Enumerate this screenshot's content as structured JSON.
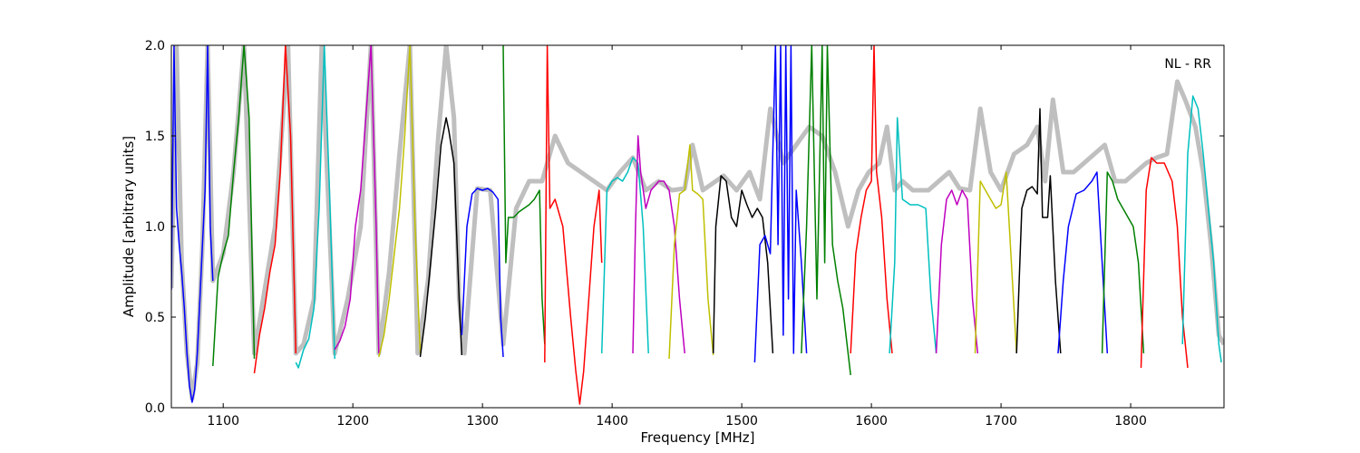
{
  "chart_data": {
    "type": "line",
    "title": "",
    "xlabel": "Frequency [MHz]",
    "ylabel": "Amplitude [arbitrary units]",
    "annotation": "NL - RR",
    "xlim": [
      1060,
      1872
    ],
    "ylim": [
      0.0,
      2.0
    ],
    "x_ticks": [
      1100,
      1200,
      1300,
      1400,
      1500,
      1600,
      1700,
      1800
    ],
    "x_tick_labels": [
      "1100",
      "1200",
      "1300",
      "1400",
      "1500",
      "1600",
      "1700",
      "1800"
    ],
    "y_ticks": [
      0.0,
      0.5,
      1.0,
      1.5,
      2.0
    ],
    "y_tick_labels": [
      "0.0",
      "0.5",
      "1.0",
      "1.5",
      "2.0"
    ],
    "grid": false,
    "background_series": {
      "color": "#bfbfbf",
      "x": [
        1060,
        1064,
        1068,
        1072,
        1076,
        1080,
        1084,
        1088,
        1092,
        1100,
        1108,
        1116,
        1124,
        1132,
        1140,
        1150,
        1156,
        1162,
        1170,
        1176,
        1186,
        1196,
        1206,
        1214,
        1220,
        1228,
        1236,
        1244,
        1250,
        1258,
        1266,
        1272,
        1278,
        1282,
        1286,
        1296,
        1306,
        1316,
        1326,
        1336,
        1346,
        1356,
        1366,
        1376,
        1386,
        1396,
        1406,
        1416,
        1426,
        1436,
        1446,
        1456,
        1462,
        1470,
        1480,
        1486,
        1496,
        1506,
        1514,
        1522,
        1532,
        1542,
        1552,
        1562,
        1572,
        1582,
        1590,
        1598,
        1606,
        1612,
        1618,
        1624,
        1632,
        1644,
        1652,
        1660,
        1668,
        1676,
        1684,
        1692,
        1700,
        1710,
        1720,
        1728,
        1734,
        1740,
        1748,
        1756,
        1764,
        1772,
        1780,
        1788,
        1796,
        1804,
        1812,
        1820,
        1828,
        1836,
        1842,
        1850,
        1856,
        1862,
        1868,
        1872
      ],
      "y": [
        0.66,
        2.0,
        0.8,
        0.3,
        0.05,
        0.25,
        0.9,
        2.0,
        0.7,
        0.85,
        1.3,
        2.0,
        0.3,
        0.65,
        1.0,
        2.0,
        0.3,
        0.35,
        0.6,
        2.0,
        0.3,
        0.6,
        1.0,
        2.0,
        0.3,
        0.75,
        1.4,
        2.0,
        0.3,
        0.7,
        1.5,
        2.0,
        1.6,
        0.6,
        0.3,
        1.21,
        1.2,
        0.35,
        1.1,
        1.25,
        1.25,
        1.5,
        1.35,
        1.3,
        1.25,
        1.2,
        1.3,
        1.38,
        1.2,
        1.25,
        1.2,
        1.21,
        1.45,
        1.2,
        1.25,
        1.28,
        1.2,
        1.3,
        1.15,
        1.65,
        1.35,
        1.45,
        1.55,
        1.5,
        1.3,
        1.0,
        1.2,
        1.3,
        1.35,
        1.55,
        1.2,
        1.25,
        1.2,
        1.2,
        1.25,
        1.3,
        1.21,
        1.2,
        1.65,
        1.3,
        1.2,
        1.4,
        1.45,
        1.55,
        1.25,
        1.7,
        1.3,
        1.3,
        1.35,
        1.4,
        1.45,
        1.25,
        1.25,
        1.3,
        1.35,
        1.38,
        1.4,
        1.8,
        1.7,
        1.55,
        1.3,
        0.9,
        0.4,
        0.35
      ]
    },
    "series": [
      {
        "color": "#0000ff",
        "x": [
          1060,
          1062,
          1064,
          1066,
          1068,
          1070,
          1072,
          1074,
          1076,
          1078,
          1080,
          1082,
          1084,
          1086,
          1088,
          1090,
          1092
        ],
        "y": [
          0.65,
          2.0,
          1.1,
          0.9,
          0.75,
          0.55,
          0.3,
          0.12,
          0.03,
          0.1,
          0.3,
          0.6,
          0.9,
          1.2,
          2.0,
          1.0,
          0.7
        ]
      },
      {
        "color": "#008000",
        "x": [
          1092,
          1096,
          1100,
          1104,
          1108,
          1112,
          1116,
          1120,
          1124
        ],
        "y": [
          0.23,
          0.72,
          0.85,
          0.95,
          1.3,
          1.6,
          2.0,
          1.6,
          0.27
        ]
      },
      {
        "color": "#ff0000",
        "x": [
          1124,
          1128,
          1132,
          1136,
          1140,
          1144,
          1148,
          1152,
          1156
        ],
        "y": [
          0.19,
          0.4,
          0.55,
          0.75,
          0.9,
          1.3,
          2.0,
          1.5,
          0.3
        ]
      },
      {
        "color": "#00bfbf",
        "x": [
          1156,
          1158,
          1162,
          1166,
          1170,
          1174,
          1178,
          1182,
          1186
        ],
        "y": [
          0.25,
          0.22,
          0.32,
          0.38,
          0.55,
          1.1,
          2.0,
          1.2,
          0.27
        ]
      },
      {
        "color": "#bf00bf",
        "x": [
          1186,
          1190,
          1194,
          1198,
          1202,
          1206,
          1210,
          1214,
          1218,
          1220
        ],
        "y": [
          0.32,
          0.37,
          0.45,
          0.6,
          1.0,
          1.2,
          1.6,
          2.0,
          1.0,
          0.3
        ]
      },
      {
        "color": "#bfbf00",
        "x": [
          1220,
          1224,
          1228,
          1232,
          1236,
          1240,
          1244,
          1248,
          1252
        ],
        "y": [
          0.28,
          0.4,
          0.6,
          0.85,
          1.1,
          1.5,
          2.0,
          1.0,
          0.3
        ]
      },
      {
        "color": "#000000",
        "x": [
          1252,
          1256,
          1260,
          1264,
          1268,
          1272,
          1274,
          1278,
          1282,
          1284
        ],
        "y": [
          0.28,
          0.5,
          0.8,
          1.1,
          1.45,
          1.6,
          1.53,
          1.35,
          0.6,
          0.29
        ]
      },
      {
        "color": "#0000ff",
        "x": [
          1284,
          1288,
          1292,
          1296,
          1300,
          1304,
          1308,
          1312,
          1314,
          1316
        ],
        "y": [
          0.4,
          1.0,
          1.18,
          1.21,
          1.2,
          1.21,
          1.19,
          1.15,
          0.5,
          0.28
        ]
      },
      {
        "color": "#008000",
        "x": [
          1316,
          1318,
          1320,
          1324,
          1328,
          1332,
          1336,
          1340,
          1344,
          1346,
          1348
        ],
        "y": [
          2.0,
          0.8,
          1.05,
          1.05,
          1.08,
          1.1,
          1.12,
          1.15,
          1.2,
          0.6,
          0.35
        ]
      },
      {
        "color": "#ff0000",
        "x": [
          1348,
          1350,
          1352,
          1356,
          1362,
          1368,
          1372,
          1375,
          1378,
          1382,
          1386,
          1390,
          1392
        ],
        "y": [
          0.25,
          2.0,
          1.1,
          1.15,
          1.0,
          0.5,
          0.2,
          0.02,
          0.2,
          0.6,
          1.0,
          1.2,
          0.8
        ]
      },
      {
        "color": "#00bfbf",
        "x": [
          1392,
          1396,
          1400,
          1404,
          1408,
          1412,
          1416,
          1420,
          1424,
          1428
        ],
        "y": [
          0.3,
          1.2,
          1.25,
          1.27,
          1.25,
          1.3,
          1.38,
          1.35,
          1.0,
          0.3
        ]
      },
      {
        "color": "#bf00bf",
        "x": [
          1416,
          1418,
          1420,
          1422,
          1426,
          1430,
          1436,
          1440,
          1444,
          1448,
          1452,
          1456
        ],
        "y": [
          0.3,
          1.0,
          1.5,
          1.3,
          1.1,
          1.2,
          1.25,
          1.25,
          1.2,
          1.0,
          0.6,
          0.3
        ]
      },
      {
        "color": "#bfbf00",
        "x": [
          1444,
          1448,
          1452,
          1456,
          1460,
          1462,
          1466,
          1470,
          1474,
          1478
        ],
        "y": [
          0.27,
          0.9,
          1.18,
          1.2,
          1.45,
          1.2,
          1.18,
          1.15,
          0.6,
          0.29
        ]
      },
      {
        "color": "#000000",
        "x": [
          1478,
          1480,
          1484,
          1488,
          1492,
          1496,
          1500,
          1504,
          1508,
          1512,
          1516,
          1520,
          1524
        ],
        "y": [
          0.3,
          1.0,
          1.28,
          1.25,
          1.05,
          1.0,
          1.2,
          1.12,
          1.05,
          1.1,
          1.05,
          0.8,
          0.3
        ]
      },
      {
        "color": "#0000ff",
        "x": [
          1510,
          1514,
          1518,
          1522,
          1526,
          1528,
          1530,
          1532,
          1534,
          1536,
          1538,
          1540,
          1542,
          1546,
          1550
        ],
        "y": [
          0.25,
          0.9,
          0.95,
          0.85,
          2.0,
          0.9,
          2.0,
          0.4,
          2.0,
          0.6,
          2.0,
          0.3,
          1.2,
          0.8,
          0.3
        ]
      },
      {
        "color": "#008000",
        "x": [
          1546,
          1550,
          1554,
          1558,
          1562,
          1564,
          1566,
          1570,
          1574,
          1578,
          1582,
          1584
        ],
        "y": [
          0.3,
          1.0,
          2.0,
          0.6,
          2.0,
          0.8,
          2.0,
          0.9,
          0.7,
          0.55,
          0.3,
          0.18
        ]
      },
      {
        "color": "#ff0000",
        "x": [
          1584,
          1588,
          1592,
          1596,
          1600,
          1602,
          1604,
          1608,
          1612,
          1616
        ],
        "y": [
          0.3,
          0.85,
          1.05,
          1.2,
          1.25,
          2.0,
          1.3,
          1.05,
          0.6,
          0.3
        ]
      },
      {
        "color": "#00bfbf",
        "x": [
          1614,
          1618,
          1620,
          1624,
          1630,
          1636,
          1642,
          1646,
          1650
        ],
        "y": [
          0.3,
          0.8,
          1.6,
          1.15,
          1.12,
          1.12,
          1.1,
          0.6,
          0.3
        ]
      },
      {
        "color": "#bf00bf",
        "x": [
          1650,
          1654,
          1658,
          1662,
          1666,
          1670,
          1674,
          1678,
          1682
        ],
        "y": [
          0.3,
          0.9,
          1.15,
          1.2,
          1.12,
          1.2,
          1.15,
          0.6,
          0.3
        ]
      },
      {
        "color": "#bfbf00",
        "x": [
          1680,
          1684,
          1688,
          1692,
          1696,
          1700,
          1704,
          1708,
          1712
        ],
        "y": [
          0.3,
          1.25,
          1.2,
          1.15,
          1.1,
          1.12,
          1.3,
          0.8,
          0.3
        ]
      },
      {
        "color": "#000000",
        "x": [
          1712,
          1716,
          1720,
          1724,
          1728,
          1730,
          1732,
          1736,
          1738,
          1742,
          1746
        ],
        "y": [
          0.3,
          1.1,
          1.2,
          1.22,
          1.18,
          1.65,
          1.05,
          1.05,
          1.28,
          0.7,
          0.3
        ]
      },
      {
        "color": "#0000ff",
        "x": [
          1744,
          1748,
          1752,
          1758,
          1764,
          1770,
          1774,
          1778,
          1782
        ],
        "y": [
          0.3,
          0.7,
          1.0,
          1.18,
          1.2,
          1.25,
          1.3,
          0.8,
          0.3
        ]
      },
      {
        "color": "#008000",
        "x": [
          1778,
          1782,
          1786,
          1790,
          1794,
          1798,
          1802,
          1806,
          1810
        ],
        "y": [
          0.3,
          1.3,
          1.25,
          1.15,
          1.1,
          1.05,
          1.0,
          0.8,
          0.3
        ]
      },
      {
        "color": "#ff0000",
        "x": [
          1808,
          1812,
          1816,
          1820,
          1826,
          1832,
          1836,
          1840,
          1844
        ],
        "y": [
          0.22,
          1.2,
          1.38,
          1.35,
          1.35,
          1.25,
          1.0,
          0.5,
          0.22
        ]
      },
      {
        "color": "#00bfbf",
        "x": [
          1840,
          1844,
          1848,
          1852,
          1856,
          1860,
          1864,
          1868,
          1870
        ],
        "y": [
          0.35,
          1.4,
          1.72,
          1.65,
          1.4,
          1.1,
          0.8,
          0.35,
          0.25
        ]
      }
    ]
  }
}
